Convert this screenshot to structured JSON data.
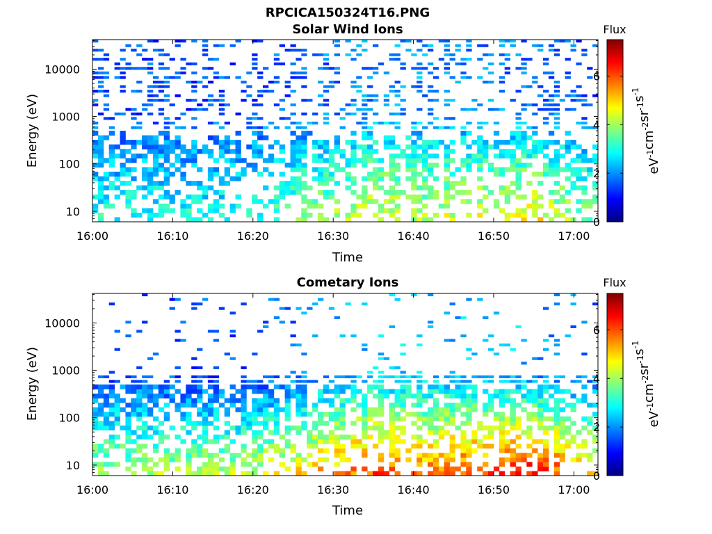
{
  "figure_title": "RPCICA150324T16.PNG",
  "colors": {
    "plot_bg": "#ffffff",
    "axis": "#000000"
  },
  "chart_data": [
    {
      "type": "heatmap",
      "title": "Solar Wind Ions",
      "xlabel": "Time",
      "ylabel": "Energy (eV)",
      "x_ticks": [
        "16:00",
        "16:10",
        "16:20",
        "16:30",
        "16:40",
        "16:50",
        "17:00"
      ],
      "x_range": [
        "16:00",
        "17:03"
      ],
      "y_scale": "log",
      "y_ticks": [
        "10",
        "100",
        "1000",
        "10000"
      ],
      "y_range": [
        6,
        42000
      ],
      "colorbar": {
        "label": "Flux",
        "units": "eV-1cm-2sr-1s-1",
        "ticks": [
          "0",
          "2",
          "4",
          "6"
        ],
        "range": [
          0,
          7.5
        ],
        "colormap": "jet"
      },
      "intensity_profile": [
        {
          "time": "16:00",
          "low_energy": 3.0,
          "high_energy": 1.5
        },
        {
          "time": "16:20",
          "low_energy": 3.0,
          "high_energy": 1.5
        },
        {
          "time": "16:35",
          "low_energy": 4.5,
          "high_energy": 2.0
        },
        {
          "time": "16:40",
          "low_energy": 4.2,
          "high_energy": 2.0
        },
        {
          "time": "16:55",
          "low_energy": 4.8,
          "high_energy": 1.8
        },
        {
          "time": "17:03",
          "low_energy": 3.5,
          "high_energy": 1.5
        }
      ]
    },
    {
      "type": "heatmap",
      "title": "Cometary Ions",
      "xlabel": "Time",
      "ylabel": "Energy (eV)",
      "x_ticks": [
        "16:00",
        "16:10",
        "16:20",
        "16:30",
        "16:40",
        "16:50",
        "17:00"
      ],
      "x_range": [
        "16:00",
        "17:03"
      ],
      "y_scale": "log",
      "y_ticks": [
        "10",
        "100",
        "1000",
        "10000"
      ],
      "y_range": [
        6,
        42000
      ],
      "colorbar": {
        "label": "Flux",
        "units": "eV-1cm-2sr-1s-1",
        "ticks": [
          "0",
          "2",
          "4",
          "6"
        ],
        "range": [
          0,
          7.5
        ],
        "colormap": "jet"
      },
      "intensity_profile": [
        {
          "time": "16:00",
          "low_energy": 4.0,
          "high_energy": 1.5
        },
        {
          "time": "16:20",
          "low_energy": 4.2,
          "high_energy": 1.5
        },
        {
          "time": "16:35",
          "low_energy": 6.0,
          "high_energy": 2.5
        },
        {
          "time": "16:40",
          "low_energy": 5.5,
          "high_energy": 2.5
        },
        {
          "time": "16:55",
          "low_energy": 6.5,
          "high_energy": 2.2
        },
        {
          "time": "17:03",
          "low_energy": 5.0,
          "high_energy": 1.8
        }
      ]
    }
  ]
}
